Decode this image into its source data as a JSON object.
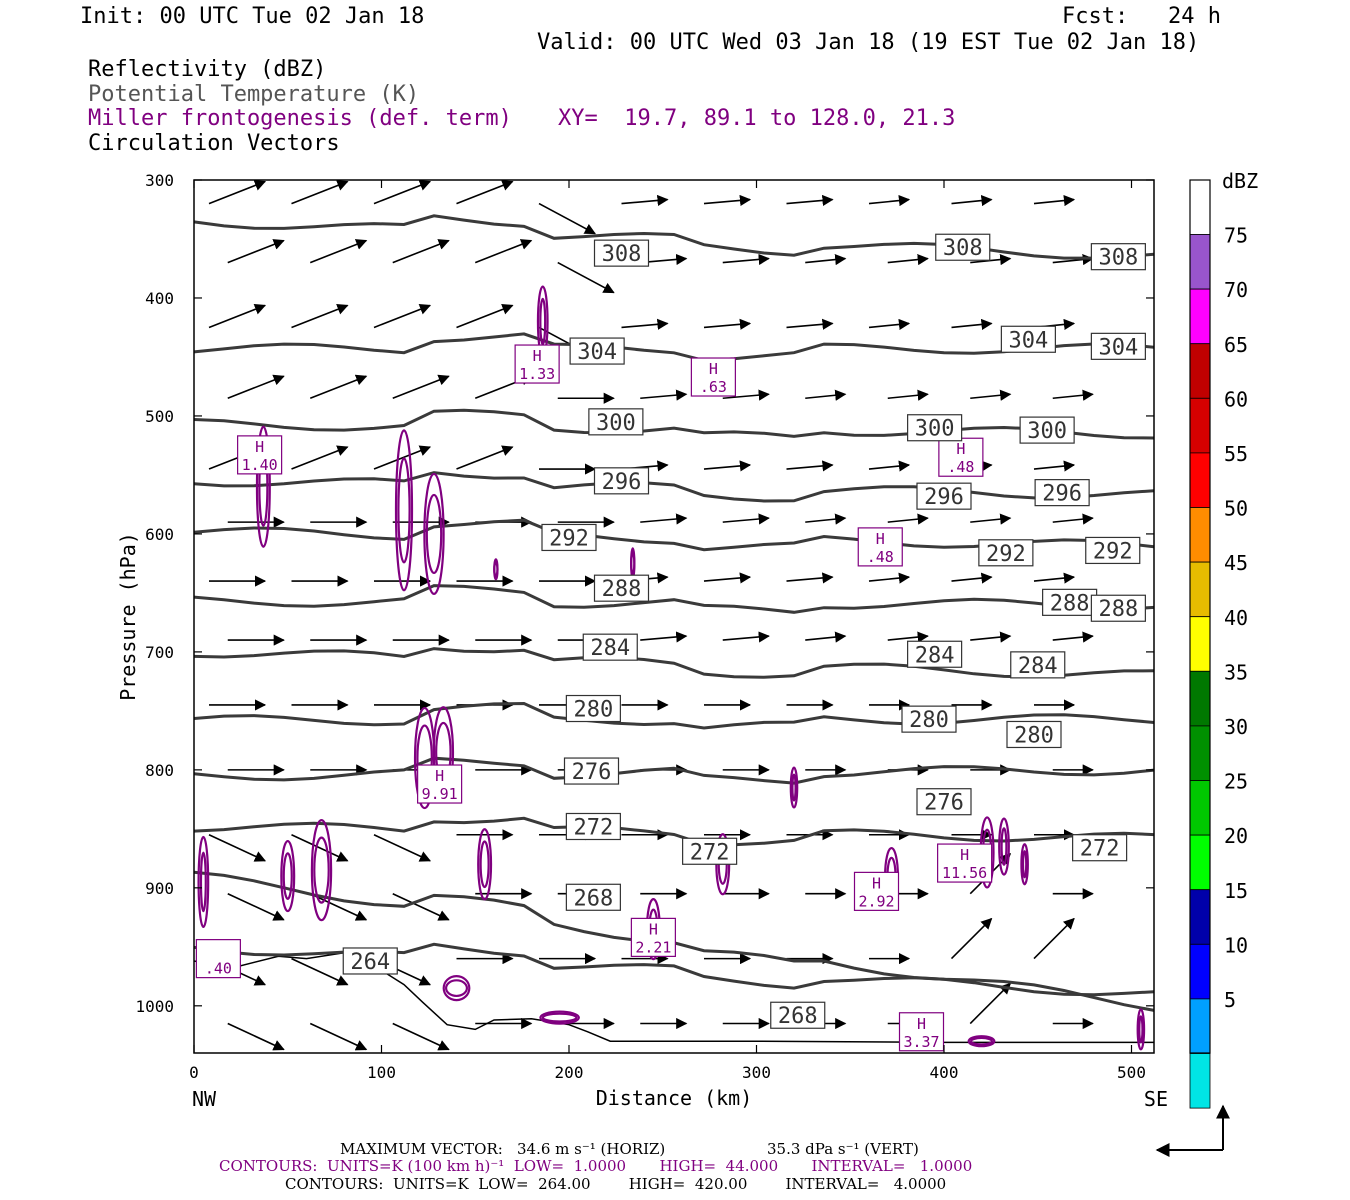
{
  "header": {
    "init": "Init: 00 UTC Tue 02 Jan 18",
    "fcst": "Fcst:   24 h",
    "valid": "Valid: 00 UTC Wed 03 Jan 18 (19 EST Tue 02 Jan 18)"
  },
  "legend": {
    "line1": "Reflectivity (dBZ)",
    "line2": "Potential Temperature (K)",
    "line3": "Miller frontogenesis (def. term)",
    "xy": "XY=  19.7, 89.1 to 128.0, 21.3",
    "line4": "Circulation Vectors"
  },
  "colors": {
    "theta_contour": "#3a3a3a",
    "frontogenesis": "#800080",
    "vectors": "#000000"
  },
  "chart_data": {
    "type": "cross-section",
    "ylabel": "Pressure (hPa)",
    "xlabel": "Distance (km)",
    "x_left_label": "NW",
    "x_right_label": "SE",
    "xlim": [
      0,
      512
    ],
    "ylim": [
      1040,
      300
    ],
    "y_ticks": [
      300,
      400,
      500,
      600,
      700,
      800,
      900,
      1000
    ],
    "x_ticks": [
      0,
      100,
      200,
      300,
      400,
      500
    ],
    "theta_isentropes": [
      {
        "level": 308,
        "p_start": 335,
        "p_end": 365
      },
      {
        "level": 304,
        "p_start": 443,
        "p_end": 443
      },
      {
        "level": 300,
        "p_start": 507,
        "p_end": 515
      },
      {
        "level": 296,
        "p_start": 555,
        "p_end": 567
      },
      {
        "level": 292,
        "p_start": 598,
        "p_end": 610
      },
      {
        "level": 288,
        "p_start": 657,
        "p_end": 660
      },
      {
        "level": 284,
        "p_start": 700,
        "p_end": 720
      },
      {
        "level": 280,
        "p_start": 758,
        "p_end": 757
      },
      {
        "level": 276,
        "p_start": 805,
        "p_end": 800
      },
      {
        "level": 272,
        "p_start": 848,
        "p_end": 858
      },
      {
        "level": 268,
        "p_start": 890,
        "p_end": 1000
      },
      {
        "level": 264,
        "p_start": 950,
        "p_end": 990
      }
    ],
    "theta_labels": [
      {
        "text": "308",
        "x": 228,
        "p": 362
      },
      {
        "text": "308",
        "x": 410,
        "p": 357
      },
      {
        "text": "308",
        "x": 493,
        "p": 365
      },
      {
        "text": "304",
        "x": 215,
        "p": 445
      },
      {
        "text": "304",
        "x": 445,
        "p": 435
      },
      {
        "text": "304",
        "x": 493,
        "p": 441
      },
      {
        "text": "300",
        "x": 225,
        "p": 505
      },
      {
        "text": "300",
        "x": 395,
        "p": 510
      },
      {
        "text": "300",
        "x": 455,
        "p": 512
      },
      {
        "text": "296",
        "x": 228,
        "p": 555
      },
      {
        "text": "296",
        "x": 400,
        "p": 568
      },
      {
        "text": "296",
        "x": 463,
        "p": 565
      },
      {
        "text": "292",
        "x": 200,
        "p": 603
      },
      {
        "text": "292",
        "x": 433,
        "p": 616
      },
      {
        "text": "292",
        "x": 490,
        "p": 614
      },
      {
        "text": "288",
        "x": 228,
        "p": 646
      },
      {
        "text": "288",
        "x": 467,
        "p": 658
      },
      {
        "text": "288",
        "x": 493,
        "p": 663
      },
      {
        "text": "284",
        "x": 222,
        "p": 696
      },
      {
        "text": "284",
        "x": 395,
        "p": 702
      },
      {
        "text": "284",
        "x": 450,
        "p": 711
      },
      {
        "text": "280",
        "x": 213,
        "p": 748
      },
      {
        "text": "280",
        "x": 392,
        "p": 757
      },
      {
        "text": "280",
        "x": 448,
        "p": 770
      },
      {
        "text": "276",
        "x": 212,
        "p": 801
      },
      {
        "text": "276",
        "x": 400,
        "p": 827
      },
      {
        "text": "272",
        "x": 213,
        "p": 848
      },
      {
        "text": "272",
        "x": 275,
        "p": 869
      },
      {
        "text": "272",
        "x": 483,
        "p": 866
      },
      {
        "text": "268",
        "x": 213,
        "p": 908
      },
      {
        "text": "268",
        "x": 322,
        "p": 1008
      },
      {
        "text": "264",
        "x": 94,
        "p": 962
      }
    ],
    "frontogenesis_maxima": [
      {
        "label": "H",
        "value": "1.40",
        "x": 35,
        "p": 533
      },
      {
        "label": "H",
        "value": "1.33",
        "x": 183,
        "p": 456
      },
      {
        "label": "H",
        "value": ".63",
        "x": 277,
        "p": 467
      },
      {
        "label": "H",
        "value": ".48",
        "x": 409,
        "p": 535
      },
      {
        "label": "H",
        "value": ".48",
        "x": 366,
        "p": 611
      },
      {
        "label": "H",
        "value": "9.91",
        "x": 131,
        "p": 812
      },
      {
        "label": "H",
        "value": "2.92",
        "x": 364,
        "p": 903
      },
      {
        "label": "H",
        "value": "11.56",
        "x": 411,
        "p": 879
      },
      {
        "label": "H",
        "value": "2.21",
        "x": 245,
        "p": 942
      },
      {
        "label": "H",
        "value": "3.37",
        "x": 388,
        "p": 1022
      },
      {
        "label": "",
        "value": ".40",
        "x": 13,
        "p": 960
      }
    ],
    "colorbar": {
      "title": "dBZ",
      "levels": [
        5,
        10,
        15,
        20,
        25,
        30,
        35,
        40,
        45,
        50,
        55,
        60,
        65,
        70,
        75
      ],
      "colors": [
        "#ffffff",
        "#00e5e5",
        "#00a0ff",
        "#0000ff",
        "#0000aa",
        "#00ff00",
        "#00c800",
        "#009000",
        "#007800",
        "#ffff00",
        "#e6bc00",
        "#ff8c00",
        "#ff0000",
        "#d60000",
        "#c00000",
        "#ff00ff",
        "#9955cc",
        "#ffffff"
      ]
    }
  },
  "footer": {
    "max_vector_label": "MAXIMUM VECTOR:",
    "max_vector_h": "34.6 m s⁻¹ (HORIZ)",
    "max_vector_v": "35.3 dPa s⁻¹ (VERT)",
    "contours1": "CONTOURS:  UNITS=K (100 km h)⁻¹  LOW=  1.0000       HIGH=  44.000       INTERVAL=   1.0000",
    "contours2": "CONTOURS:  UNITS=K  LOW=  264.00        HIGH=  420.00        INTERVAL=   4.0000"
  }
}
